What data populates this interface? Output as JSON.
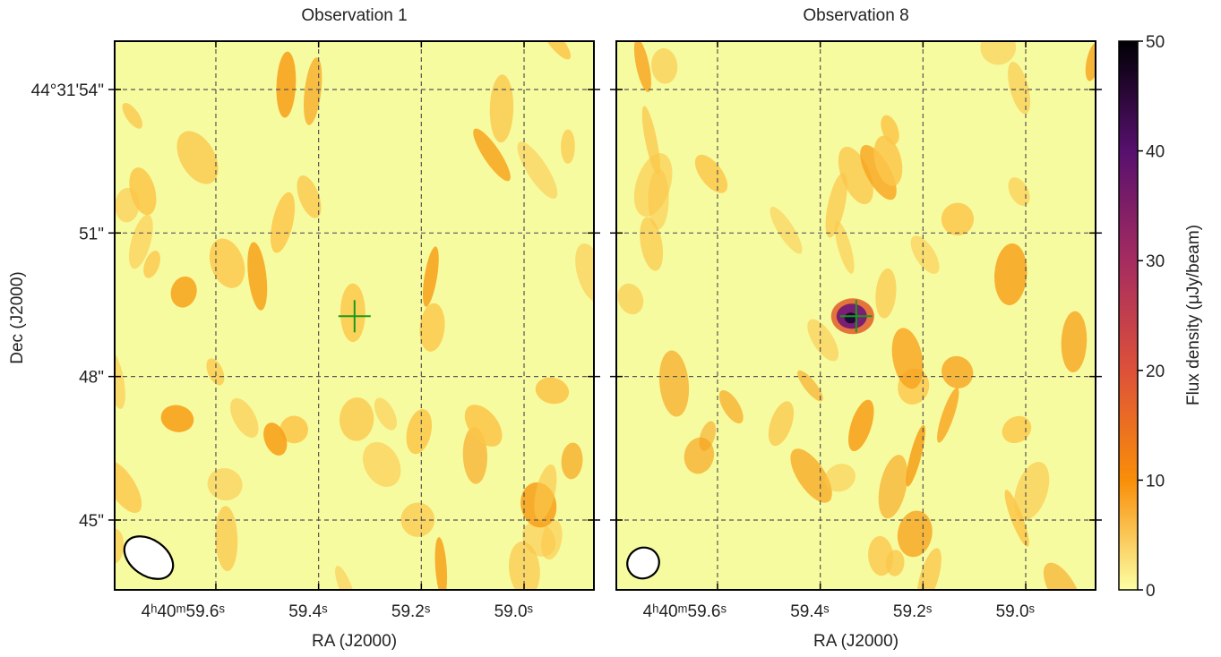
{
  "chart_data": [
    {
      "type": "image",
      "title": "Observation 1",
      "xlabel": "RA (J2000)",
      "ylabel": "Dec (J2000)",
      "xlim": [
        59.797,
        58.864
      ],
      "ylim": [
        43.54,
        55.01
      ],
      "xticks": [
        {
          "value": 59.6,
          "label": "4ʰ40ᵐ59.6ˢ"
        },
        {
          "value": 59.4,
          "label": "59.4ˢ"
        },
        {
          "value": 59.2,
          "label": "59.2ˢ"
        },
        {
          "value": 59.0,
          "label": "59.0ˢ"
        }
      ],
      "yticks": [
        {
          "value": 54,
          "label": "44°31'54\""
        },
        {
          "value": 51,
          "label": "51\""
        },
        {
          "value": 48,
          "label": "48\""
        },
        {
          "value": 45,
          "label": "45\""
        }
      ],
      "grid": true,
      "source": {
        "x": 59.33,
        "y": 49.26,
        "color": "#1a9a1a"
      }
    },
    {
      "type": "image",
      "title": "Observation 8",
      "xlabel": "RA (J2000)",
      "xlim": [
        59.797,
        58.864
      ],
      "ylim": [
        43.54,
        55.01
      ],
      "xticks": [
        {
          "value": 59.6,
          "label": "4ʰ40ᵐ59.6ˢ"
        },
        {
          "value": 59.4,
          "label": "59.4ˢ"
        },
        {
          "value": 59.2,
          "label": "59.2ˢ"
        },
        {
          "value": 59.0,
          "label": "59.0ˢ"
        }
      ],
      "grid": true,
      "source": {
        "x": 59.33,
        "y": 49.26,
        "color": "#1a9a1a"
      }
    },
    {
      "type": "colorbar",
      "label": "Flux density (μJy/beam)",
      "ylim": [
        0,
        50
      ],
      "yticks": [
        0,
        10,
        20,
        30,
        40,
        50
      ],
      "colormap": "inferno_r"
    }
  ]
}
